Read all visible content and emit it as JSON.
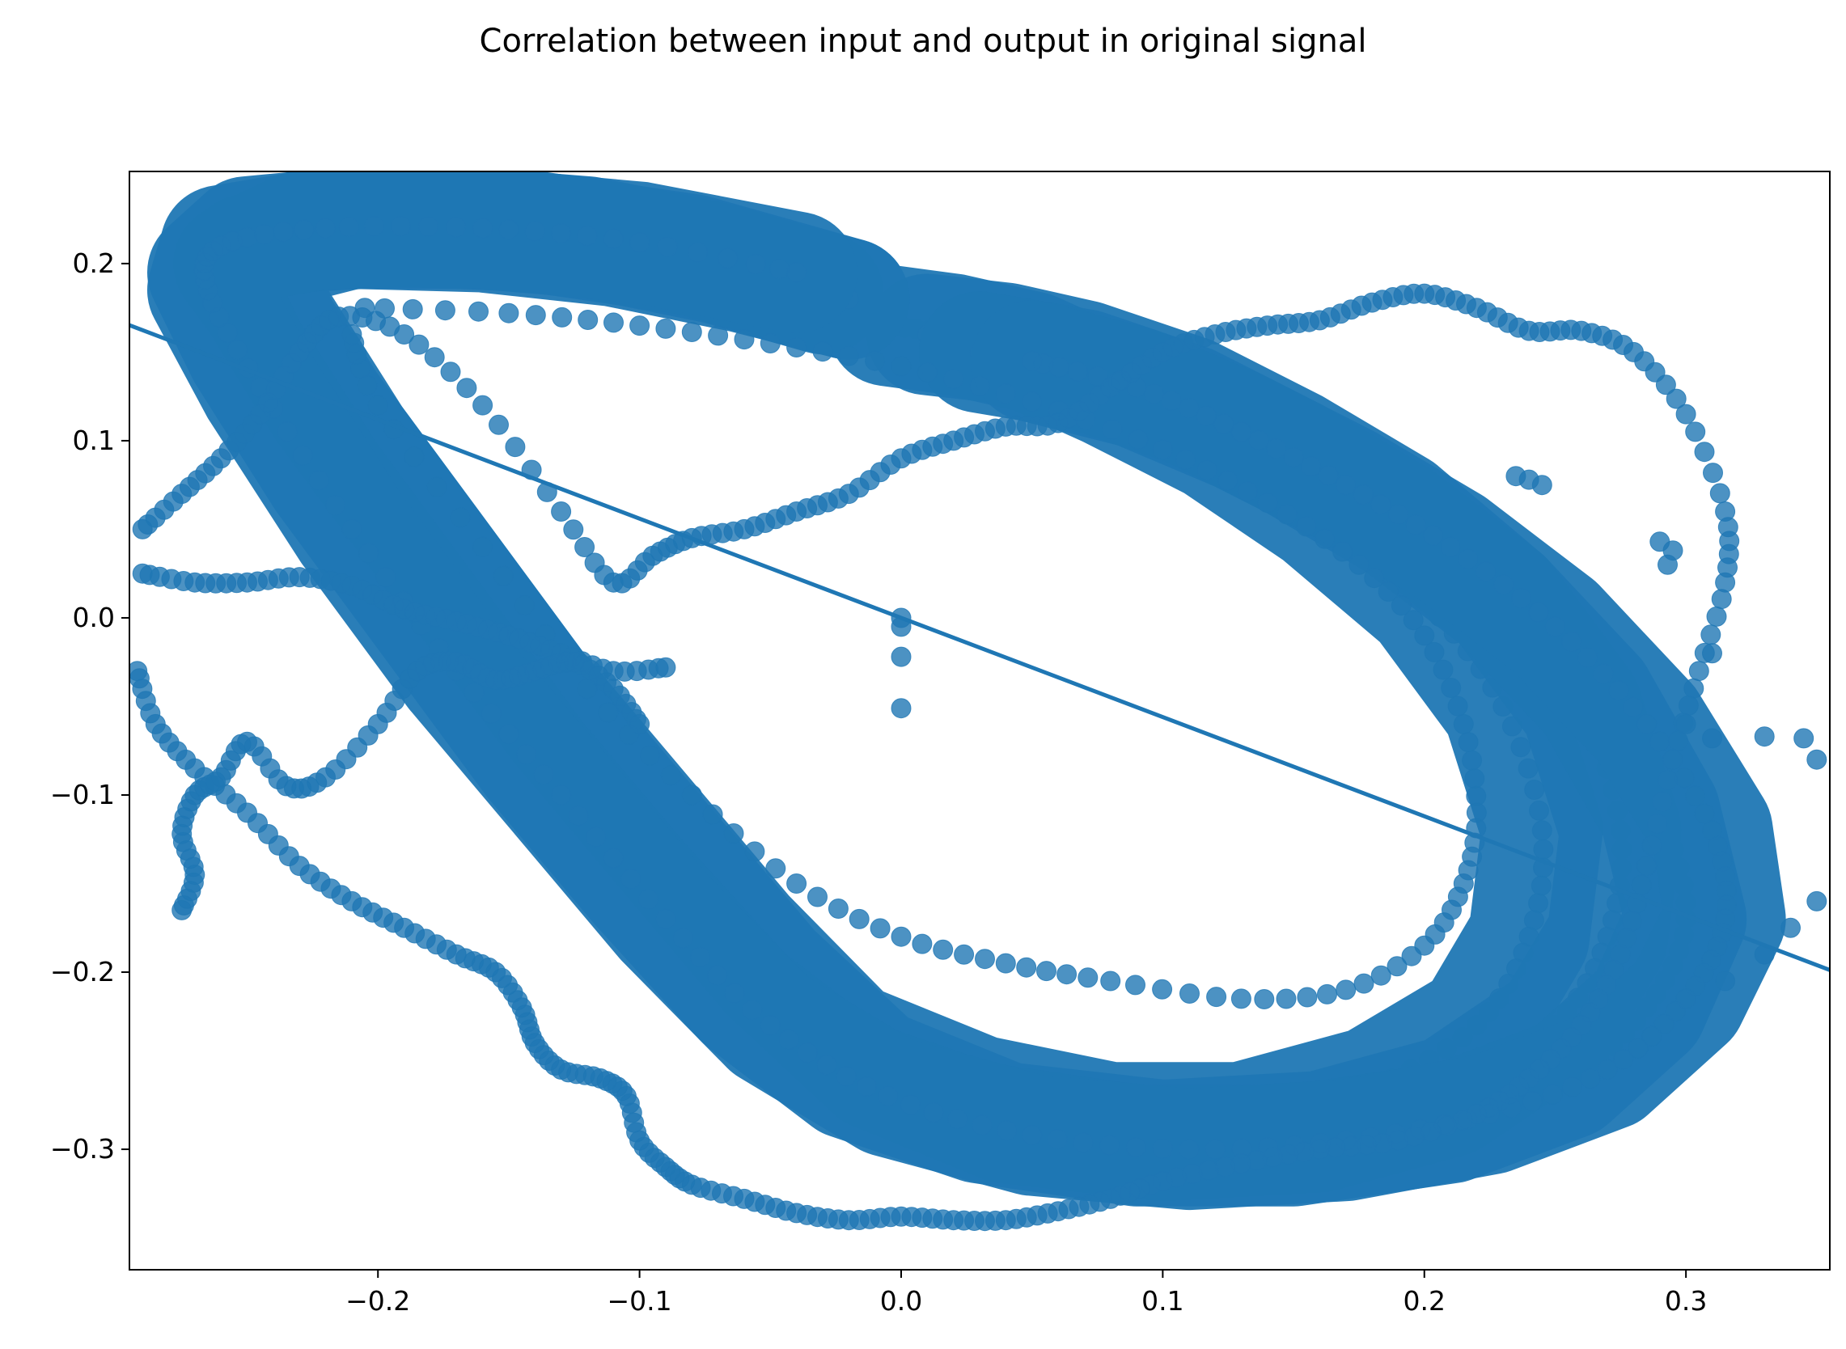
{
  "chart_data": {
    "type": "scatter",
    "title": "Correlation between input and output in original signal",
    "xlabel": "",
    "ylabel": "",
    "xlim": [
      -0.295,
      0.355
    ],
    "ylim": [
      -0.368,
      0.252
    ],
    "xticks": [
      -0.2,
      -0.1,
      0.0,
      0.1,
      0.2,
      0.3
    ],
    "xtick_labels": [
      "−0.2",
      "−0.1",
      "0.0",
      "0.1",
      "0.2",
      "0.3"
    ],
    "yticks": [
      -0.3,
      -0.2,
      -0.1,
      0.0,
      0.1,
      0.2
    ],
    "ytick_labels": [
      "−0.3",
      "−0.2",
      "−0.1",
      "0.0",
      "0.1",
      "0.2"
    ],
    "grid": false,
    "legend": "none",
    "marker_color": "#1f77b4",
    "regression_line": {
      "slope": -0.56,
      "intercept": 0.0,
      "color": "#1f77b4"
    },
    "series": [
      {
        "values": [
          {
            "x": -0.005,
            "y": 0.165
          },
          {
            "x": 0.02,
            "y": 0.16
          },
          {
            "x": 0.05,
            "y": 0.15
          },
          {
            "x": 0.08,
            "y": 0.13
          },
          {
            "x": 0.12,
            "y": 0.1
          },
          {
            "x": 0.16,
            "y": 0.06
          },
          {
            "x": 0.2,
            "y": 0.01
          },
          {
            "x": 0.23,
            "y": -0.05
          },
          {
            "x": 0.245,
            "y": -0.12
          },
          {
            "x": 0.24,
            "y": -0.18
          },
          {
            "x": 0.22,
            "y": -0.23
          },
          {
            "x": 0.18,
            "y": -0.265
          },
          {
            "x": 0.13,
            "y": -0.285
          },
          {
            "x": 0.08,
            "y": -0.285
          },
          {
            "x": 0.03,
            "y": -0.27
          },
          {
            "x": -0.02,
            "y": -0.24
          },
          {
            "x": -0.06,
            "y": -0.18
          },
          {
            "x": -0.1,
            "y": -0.11
          },
          {
            "x": -0.14,
            "y": -0.04
          },
          {
            "x": -0.18,
            "y": 0.04
          },
          {
            "x": -0.22,
            "y": 0.12
          },
          {
            "x": -0.245,
            "y": 0.18
          },
          {
            "x": -0.25,
            "y": 0.205
          },
          {
            "x": -0.21,
            "y": 0.22
          },
          {
            "x": -0.16,
            "y": 0.218
          },
          {
            "x": -0.11,
            "y": 0.21
          },
          {
            "x": -0.06,
            "y": 0.195
          },
          {
            "x": -0.02,
            "y": 0.18
          }
        ]
      },
      {
        "values": [
          {
            "x": 0.01,
            "y": 0.16
          },
          {
            "x": 0.04,
            "y": 0.155
          },
          {
            "x": 0.07,
            "y": 0.145
          },
          {
            "x": 0.11,
            "y": 0.125
          },
          {
            "x": 0.15,
            "y": 0.095
          },
          {
            "x": 0.19,
            "y": 0.06
          },
          {
            "x": 0.23,
            "y": 0.01
          },
          {
            "x": 0.26,
            "y": -0.05
          },
          {
            "x": 0.275,
            "y": -0.12
          },
          {
            "x": 0.27,
            "y": -0.18
          },
          {
            "x": 0.25,
            "y": -0.23
          },
          {
            "x": 0.21,
            "y": -0.27
          },
          {
            "x": 0.16,
            "y": -0.29
          },
          {
            "x": 0.1,
            "y": -0.295
          },
          {
            "x": 0.04,
            "y": -0.285
          },
          {
            "x": -0.01,
            "y": -0.255
          },
          {
            "x": -0.05,
            "y": -0.2
          },
          {
            "x": -0.09,
            "y": -0.13
          },
          {
            "x": -0.13,
            "y": -0.06
          },
          {
            "x": -0.17,
            "y": 0.02
          },
          {
            "x": -0.21,
            "y": 0.1
          },
          {
            "x": -0.24,
            "y": 0.17
          },
          {
            "x": -0.255,
            "y": 0.2
          },
          {
            "x": -0.23,
            "y": 0.218
          },
          {
            "x": -0.18,
            "y": 0.222
          },
          {
            "x": -0.12,
            "y": 0.215
          },
          {
            "x": -0.07,
            "y": 0.2
          },
          {
            "x": -0.03,
            "y": 0.183
          }
        ]
      },
      {
        "values": [
          {
            "x": 0.03,
            "y": 0.15
          },
          {
            "x": 0.07,
            "y": 0.14
          },
          {
            "x": 0.11,
            "y": 0.12
          },
          {
            "x": 0.15,
            "y": 0.09
          },
          {
            "x": 0.19,
            "y": 0.055
          },
          {
            "x": 0.23,
            "y": 0.01
          },
          {
            "x": 0.265,
            "y": -0.045
          },
          {
            "x": 0.29,
            "y": -0.11
          },
          {
            "x": 0.3,
            "y": -0.17
          },
          {
            "x": 0.285,
            "y": -0.22
          },
          {
            "x": 0.255,
            "y": -0.26
          },
          {
            "x": 0.21,
            "y": -0.285
          },
          {
            "x": 0.15,
            "y": -0.298
          },
          {
            "x": 0.09,
            "y": -0.298
          },
          {
            "x": 0.03,
            "y": -0.285
          },
          {
            "x": -0.02,
            "y": -0.26
          },
          {
            "x": -0.06,
            "y": -0.215
          },
          {
            "x": -0.1,
            "y": -0.15
          },
          {
            "x": -0.14,
            "y": -0.08
          },
          {
            "x": -0.18,
            "y": 0.0
          },
          {
            "x": -0.22,
            "y": 0.08
          },
          {
            "x": -0.25,
            "y": 0.15
          },
          {
            "x": -0.265,
            "y": 0.195
          },
          {
            "x": -0.25,
            "y": 0.215
          },
          {
            "x": -0.2,
            "y": 0.222
          },
          {
            "x": -0.14,
            "y": 0.218
          },
          {
            "x": -0.08,
            "y": 0.205
          },
          {
            "x": -0.02,
            "y": 0.18
          }
        ]
      },
      {
        "values": [
          {
            "x": 0.05,
            "y": 0.145
          },
          {
            "x": 0.09,
            "y": 0.13
          },
          {
            "x": 0.13,
            "y": 0.105
          },
          {
            "x": 0.17,
            "y": 0.075
          },
          {
            "x": 0.21,
            "y": 0.04
          },
          {
            "x": 0.25,
            "y": -0.005
          },
          {
            "x": 0.285,
            "y": -0.06
          },
          {
            "x": 0.31,
            "y": -0.12
          },
          {
            "x": 0.315,
            "y": -0.17
          },
          {
            "x": 0.3,
            "y": -0.215
          },
          {
            "x": 0.27,
            "y": -0.255
          },
          {
            "x": 0.225,
            "y": -0.28
          },
          {
            "x": 0.17,
            "y": -0.295
          },
          {
            "x": 0.11,
            "y": -0.3
          },
          {
            "x": 0.05,
            "y": -0.292
          },
          {
            "x": -0.005,
            "y": -0.27
          },
          {
            "x": -0.05,
            "y": -0.23
          },
          {
            "x": -0.09,
            "y": -0.17
          },
          {
            "x": -0.13,
            "y": -0.1
          },
          {
            "x": -0.17,
            "y": -0.03
          },
          {
            "x": -0.21,
            "y": 0.05
          },
          {
            "x": -0.245,
            "y": 0.13
          },
          {
            "x": -0.265,
            "y": 0.185
          },
          {
            "x": -0.26,
            "y": 0.21
          },
          {
            "x": -0.22,
            "y": 0.22
          },
          {
            "x": -0.16,
            "y": 0.22
          },
          {
            "x": -0.1,
            "y": 0.212
          },
          {
            "x": -0.04,
            "y": 0.195
          }
        ]
      },
      {
        "values": [
          {
            "x": -0.205,
            "y": 0.175
          },
          {
            "x": -0.15,
            "y": 0.172
          },
          {
            "x": -0.1,
            "y": 0.165
          },
          {
            "x": -0.05,
            "y": 0.155
          },
          {
            "x": 0.0,
            "y": 0.142
          },
          {
            "x": 0.05,
            "y": 0.122
          },
          {
            "x": 0.1,
            "y": 0.095
          },
          {
            "x": 0.14,
            "y": 0.065
          },
          {
            "x": 0.175,
            "y": 0.03
          },
          {
            "x": 0.2,
            "y": -0.01
          },
          {
            "x": 0.215,
            "y": -0.06
          },
          {
            "x": 0.22,
            "y": -0.11
          },
          {
            "x": 0.215,
            "y": -0.15
          },
          {
            "x": 0.2,
            "y": -0.185
          },
          {
            "x": 0.17,
            "y": -0.21
          },
          {
            "x": 0.13,
            "y": -0.215
          },
          {
            "x": 0.08,
            "y": -0.205
          },
          {
            "x": 0.04,
            "y": -0.195
          },
          {
            "x": 0.0,
            "y": -0.18
          },
          {
            "x": -0.04,
            "y": -0.15
          },
          {
            "x": -0.08,
            "y": -0.1
          },
          {
            "x": -0.12,
            "y": -0.04
          },
          {
            "x": -0.16,
            "y": 0.04
          },
          {
            "x": -0.2,
            "y": 0.12
          },
          {
            "x": -0.21,
            "y": 0.16
          }
        ]
      },
      {
        "values": [
          {
            "x": -0.29,
            "y": 0.05
          },
          {
            "x": -0.275,
            "y": 0.07
          },
          {
            "x": -0.26,
            "y": 0.09
          },
          {
            "x": -0.245,
            "y": 0.115
          },
          {
            "x": -0.23,
            "y": 0.15
          },
          {
            "x": -0.215,
            "y": 0.17
          },
          {
            "x": -0.19,
            "y": 0.16
          },
          {
            "x": -0.16,
            "y": 0.12
          },
          {
            "x": -0.13,
            "y": 0.06
          },
          {
            "x": -0.11,
            "y": 0.02
          },
          {
            "x": -0.095,
            "y": 0.035
          },
          {
            "x": -0.08,
            "y": 0.045
          },
          {
            "x": -0.06,
            "y": 0.05
          },
          {
            "x": -0.04,
            "y": 0.06
          },
          {
            "x": -0.02,
            "y": 0.07
          },
          {
            "x": 0.0,
            "y": 0.09
          },
          {
            "x": 0.02,
            "y": 0.1
          },
          {
            "x": 0.04,
            "y": 0.108
          },
          {
            "x": 0.06,
            "y": 0.11
          },
          {
            "x": 0.08,
            "y": 0.13
          },
          {
            "x": 0.1,
            "y": 0.15
          },
          {
            "x": 0.12,
            "y": 0.16
          },
          {
            "x": 0.14,
            "y": 0.165
          },
          {
            "x": 0.16,
            "y": 0.168
          },
          {
            "x": 0.18,
            "y": 0.178
          },
          {
            "x": 0.2,
            "y": 0.183
          },
          {
            "x": 0.22,
            "y": 0.175
          },
          {
            "x": 0.24,
            "y": 0.162
          },
          {
            "x": 0.26,
            "y": 0.162
          },
          {
            "x": 0.28,
            "y": 0.15
          },
          {
            "x": 0.3,
            "y": 0.115
          },
          {
            "x": 0.315,
            "y": 0.06
          },
          {
            "x": 0.315,
            "y": 0.02
          },
          {
            "x": 0.305,
            "y": -0.03
          },
          {
            "x": 0.295,
            "y": -0.08
          },
          {
            "x": 0.285,
            "y": -0.14
          },
          {
            "x": 0.275,
            "y": -0.19
          },
          {
            "x": 0.26,
            "y": -0.23
          },
          {
            "x": 0.24,
            "y": -0.26
          },
          {
            "x": 0.22,
            "y": -0.28
          },
          {
            "x": 0.19,
            "y": -0.295
          },
          {
            "x": 0.16,
            "y": -0.3
          },
          {
            "x": 0.13,
            "y": -0.308
          },
          {
            "x": 0.1,
            "y": -0.318
          },
          {
            "x": 0.08,
            "y": -0.328
          },
          {
            "x": 0.06,
            "y": -0.335
          },
          {
            "x": 0.04,
            "y": -0.34
          },
          {
            "x": 0.02,
            "y": -0.34
          },
          {
            "x": 0.0,
            "y": -0.338
          },
          {
            "x": -0.02,
            "y": -0.34
          },
          {
            "x": -0.04,
            "y": -0.336
          },
          {
            "x": -0.06,
            "y": -0.328
          },
          {
            "x": -0.08,
            "y": -0.32
          },
          {
            "x": -0.09,
            "y": -0.31
          },
          {
            "x": -0.1,
            "y": -0.295
          },
          {
            "x": -0.105,
            "y": -0.27
          },
          {
            "x": -0.115,
            "y": -0.26
          },
          {
            "x": -0.13,
            "y": -0.255
          },
          {
            "x": -0.14,
            "y": -0.24
          },
          {
            "x": -0.145,
            "y": -0.22
          },
          {
            "x": -0.155,
            "y": -0.2
          },
          {
            "x": -0.17,
            "y": -0.19
          },
          {
            "x": -0.19,
            "y": -0.175
          },
          {
            "x": -0.21,
            "y": -0.16
          },
          {
            "x": -0.23,
            "y": -0.14
          },
          {
            "x": -0.25,
            "y": -0.11
          },
          {
            "x": -0.27,
            "y": -0.085
          },
          {
            "x": -0.285,
            "y": -0.06
          },
          {
            "x": -0.292,
            "y": -0.03
          }
        ]
      },
      {
        "values": [
          {
            "x": -0.29,
            "y": 0.025
          },
          {
            "x": -0.27,
            "y": 0.02
          },
          {
            "x": -0.25,
            "y": 0.02
          },
          {
            "x": -0.23,
            "y": 0.023
          },
          {
            "x": -0.21,
            "y": 0.018
          },
          {
            "x": -0.19,
            "y": 0.005
          },
          {
            "x": -0.17,
            "y": -0.002
          },
          {
            "x": -0.15,
            "y": -0.01
          },
          {
            "x": -0.13,
            "y": -0.02
          },
          {
            "x": -0.11,
            "y": -0.03
          },
          {
            "x": -0.09,
            "y": -0.028
          }
        ]
      },
      {
        "values": [
          {
            "x": -0.275,
            "y": -0.165
          },
          {
            "x": -0.27,
            "y": -0.145
          },
          {
            "x": -0.275,
            "y": -0.122
          },
          {
            "x": -0.27,
            "y": -0.1
          },
          {
            "x": -0.26,
            "y": -0.09
          },
          {
            "x": -0.25,
            "y": -0.07
          },
          {
            "x": -0.235,
            "y": -0.095
          },
          {
            "x": -0.22,
            "y": -0.09
          },
          {
            "x": -0.2,
            "y": -0.06
          },
          {
            "x": -0.185,
            "y": -0.03
          },
          {
            "x": -0.17,
            "y": -0.025
          },
          {
            "x": -0.155,
            "y": -0.035
          },
          {
            "x": -0.14,
            "y": -0.03
          },
          {
            "x": -0.125,
            "y": -0.025
          },
          {
            "x": -0.11,
            "y": -0.04
          },
          {
            "x": -0.1,
            "y": -0.06
          }
        ]
      },
      {
        "values": [
          {
            "x": 0.0,
            "y": 0.0
          },
          {
            "x": 0.0,
            "y": -0.005
          },
          {
            "x": 0.0,
            "y": -0.022
          },
          {
            "x": 0.0,
            "y": -0.051
          },
          {
            "x": 0.235,
            "y": 0.08
          },
          {
            "x": 0.24,
            "y": 0.078
          },
          {
            "x": 0.245,
            "y": 0.075
          },
          {
            "x": 0.29,
            "y": 0.043
          },
          {
            "x": 0.295,
            "y": 0.038
          },
          {
            "x": 0.293,
            "y": 0.03
          },
          {
            "x": 0.3,
            "y": -0.215
          },
          {
            "x": 0.315,
            "y": -0.205
          },
          {
            "x": 0.33,
            "y": -0.19
          },
          {
            "x": 0.34,
            "y": -0.175
          },
          {
            "x": 0.35,
            "y": -0.16
          },
          {
            "x": 0.35,
            "y": -0.08
          },
          {
            "x": 0.345,
            "y": -0.068
          },
          {
            "x": 0.33,
            "y": -0.067
          },
          {
            "x": 0.31,
            "y": -0.068
          },
          {
            "x": 0.3,
            "y": -0.06
          },
          {
            "x": 0.31,
            "y": -0.02
          }
        ]
      }
    ]
  }
}
